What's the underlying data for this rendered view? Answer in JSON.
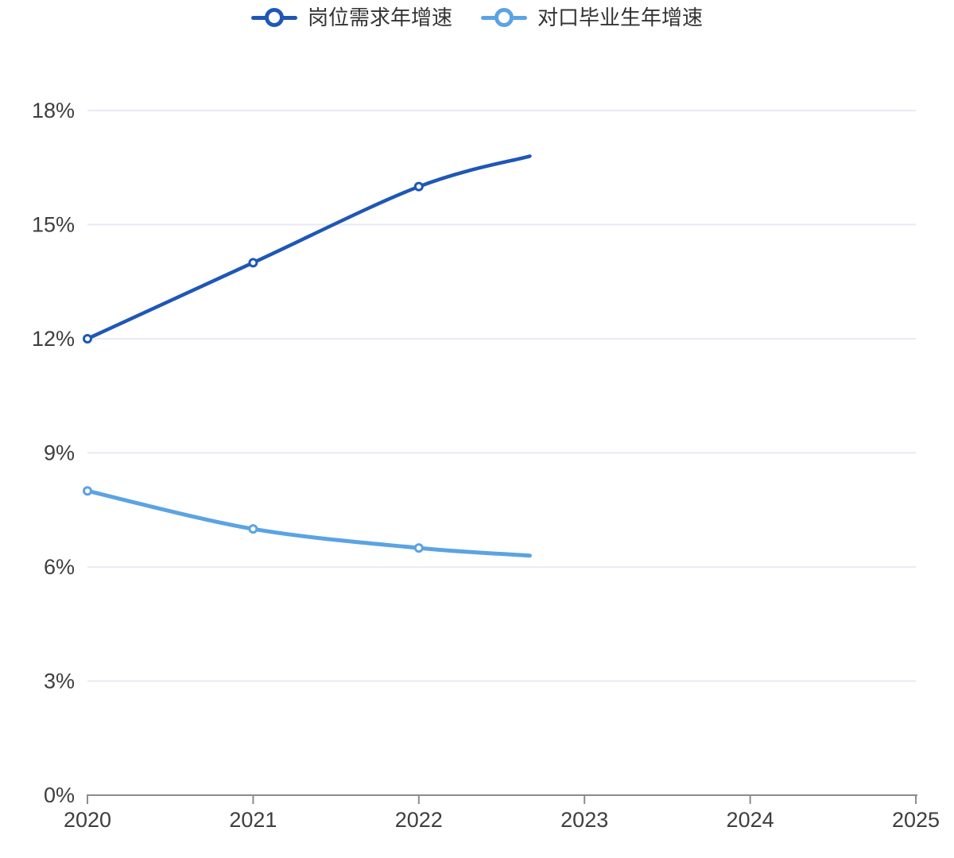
{
  "legend": {
    "items": [
      {
        "label": "岗位需求年增速",
        "color": "#1f57b6"
      },
      {
        "label": "对口毕业生年增速",
        "color": "#5ba3e3"
      }
    ]
  },
  "chart_data": {
    "type": "line",
    "smooth": true,
    "title": "",
    "xlabel": "",
    "ylabel": "",
    "x": [
      2020,
      2021,
      2022,
      2022.67
    ],
    "series": [
      {
        "name": "岗位需求年增速",
        "color": "#1f57b6",
        "line_width": 4.5,
        "values": [
          12,
          14,
          16,
          16.8
        ],
        "markers": [
          true,
          true,
          true,
          false
        ]
      },
      {
        "name": "对口毕业生年增速",
        "color": "#5ba3e3",
        "line_width": 5,
        "values": [
          8,
          7,
          6.5,
          6.3
        ],
        "markers": [
          true,
          true,
          true,
          false
        ]
      }
    ],
    "xlim": [
      2020,
      2025
    ],
    "ylim": [
      0,
      18
    ],
    "x_ticks": [
      2020,
      2021,
      2022,
      2023,
      2024,
      2025
    ],
    "x_tick_labels": [
      "2020",
      "2021",
      "2022",
      "2023",
      "2024",
      "2025"
    ],
    "y_ticks": [
      0,
      3,
      6,
      9,
      12,
      15,
      18
    ],
    "y_tick_labels": [
      "0%",
      "3%",
      "6%",
      "9%",
      "12%",
      "15%",
      "18%"
    ],
    "grid": true,
    "legend_position": "top"
  },
  "colors": {
    "background": "#ffffff",
    "grid_line": "#e7eaf4",
    "axis_line": "#8c8c8c",
    "axis_text": "#3e3e3e",
    "legend_text": "#333333",
    "series_dark_blue": "#1f57b6",
    "series_light_blue": "#5ba3e3",
    "marker_fill": "#ffffff"
  }
}
